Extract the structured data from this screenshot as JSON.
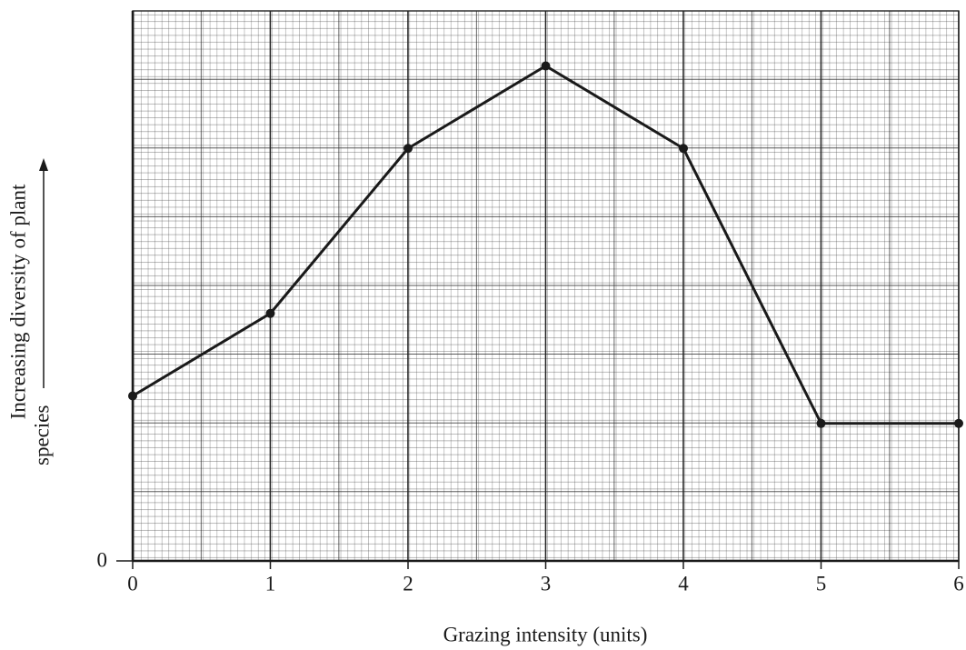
{
  "chart_data": {
    "type": "line",
    "xlabel": "Grazing intensity (units)",
    "ylabel": [
      "Increasing diversity of plant",
      "species"
    ],
    "x": [
      0,
      1,
      2,
      3,
      4,
      5,
      6
    ],
    "series": [
      {
        "color": "#1a1a1a",
        "values": [
          2.4,
          3.6,
          6.0,
          7.2,
          6.0,
          2.0,
          2.0
        ]
      }
    ],
    "xlim": [
      0,
      6
    ],
    "ylim": [
      0,
      8
    ],
    "xticks": [
      0,
      1,
      2,
      3,
      4,
      5,
      6
    ],
    "yticks": [
      0
    ],
    "grid": true
  }
}
